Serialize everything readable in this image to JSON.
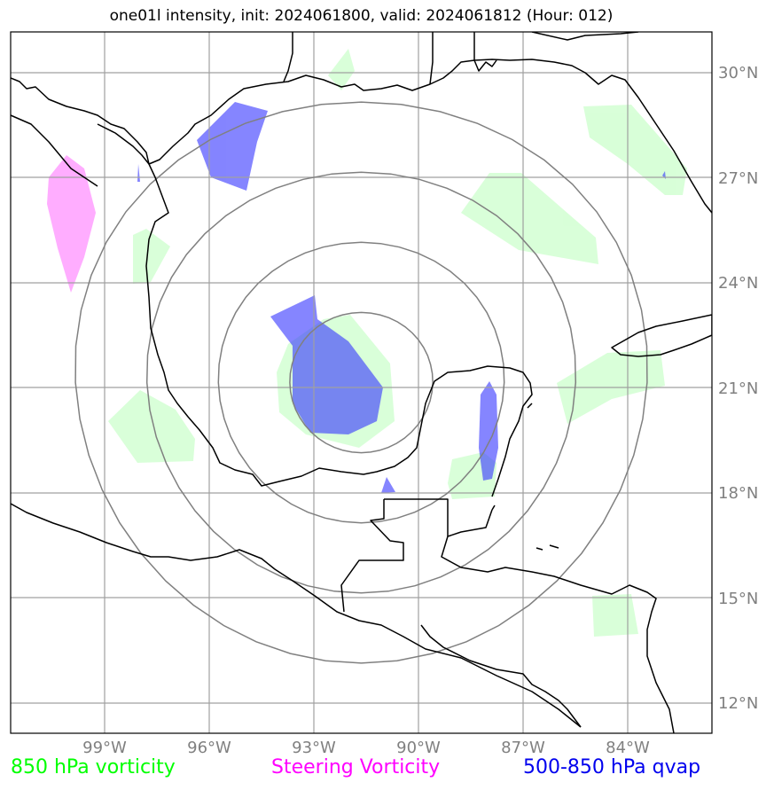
{
  "title": "one01l intensity, init: 2024061800, valid: 2024061812 (Hour: 012)",
  "lat_labels": [
    "30°N",
    "27°N",
    "24°N",
    "21°N",
    "18°N",
    "15°N",
    "12°N"
  ],
  "lon_labels": [
    "99°W",
    "96°W",
    "93°W",
    "90°W",
    "87°W",
    "84°W"
  ],
  "map_extent": {
    "lon_min": -101.7,
    "lon_max": -81.7,
    "lat_min": 11.2,
    "lat_max": 31.2
  },
  "range_rings_deg": [
    2,
    4,
    6,
    8
  ],
  "ring_center": {
    "lon": -91.7,
    "lat": 21.2
  },
  "legend": {
    "vorticity_850": "850 hPa vorticity",
    "steering_vorticity": "Steering Vorticity",
    "qvap_500_850": "500-850 hPa qvap"
  },
  "colors": {
    "vorticity_850": "#ccffcc",
    "steering_vorticity": "#ff99ff",
    "qvap": "#3333ff",
    "grid": "#a0a0a0",
    "rings": "#808080",
    "coast": "#000000"
  }
}
